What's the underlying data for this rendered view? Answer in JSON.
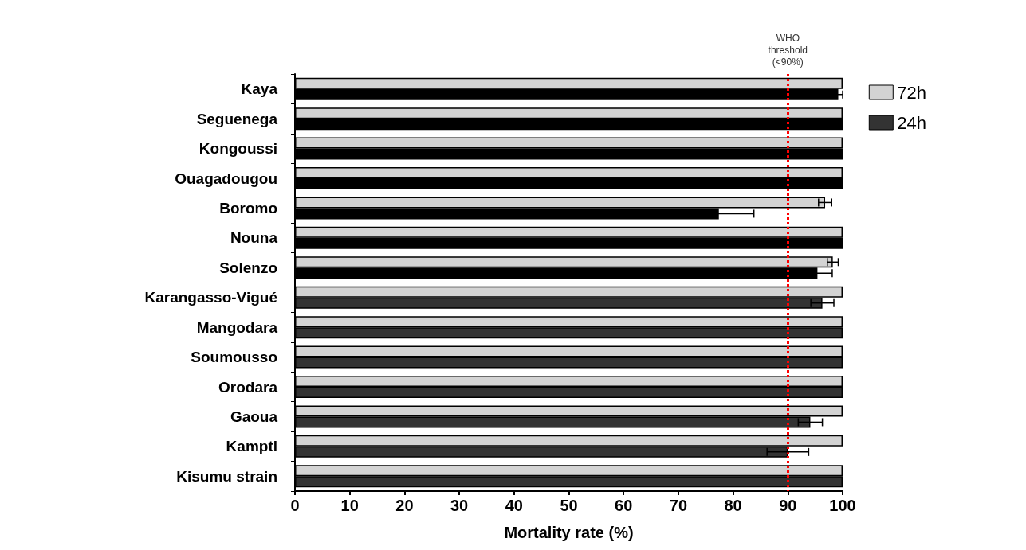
{
  "chart_data": {
    "type": "bar",
    "orientation": "horizontal",
    "xlabel": "Mortality rate (%)",
    "categories": [
      "Kaya",
      "Seguenega",
      "Kongoussi",
      "Ouagadougou",
      "Boromo",
      "Nouna",
      "Solenzo",
      "Karangasso-Vigué",
      "Mangodara",
      "Soumousso",
      "Orodara",
      "Gaoua",
      "Kampti",
      "Kisumu strain"
    ],
    "series": [
      {
        "name": "72h",
        "color": "#d3d3d3",
        "values": [
          100,
          100,
          100,
          100,
          96.8,
          100,
          98.2,
          100,
          100,
          100,
          100,
          100,
          100,
          100
        ],
        "errors": [
          null,
          null,
          null,
          null,
          1.2,
          null,
          1.0,
          null,
          null,
          null,
          null,
          null,
          null,
          null
        ]
      },
      {
        "name": "24h",
        "color": "#333333",
        "colors": [
          "#000000",
          "#000000",
          "#000000",
          "#000000",
          "#000000",
          "#000000",
          "#000000",
          "#333333",
          "#333333",
          "#333333",
          "#333333",
          "#333333",
          "#333333",
          "#333333"
        ],
        "values": [
          99.2,
          100,
          100,
          100,
          77.4,
          100,
          95.4,
          96.3,
          100,
          100,
          100,
          94.1,
          90.0,
          100
        ],
        "errors": [
          0.8,
          null,
          null,
          null,
          6.4,
          null,
          2.7,
          2.1,
          null,
          null,
          null,
          2.2,
          3.8,
          null
        ]
      }
    ],
    "xlim": [
      0,
      100
    ],
    "xticks": [
      0,
      10,
      20,
      30,
      40,
      50,
      60,
      70,
      80,
      90,
      100
    ],
    "ref_lines": [
      {
        "axis": "x",
        "value": 90,
        "label": "WHO threshold (<90%)",
        "color": "#ff0000",
        "line_style": "dotted"
      }
    ],
    "legend": "top right",
    "grid": false
  }
}
